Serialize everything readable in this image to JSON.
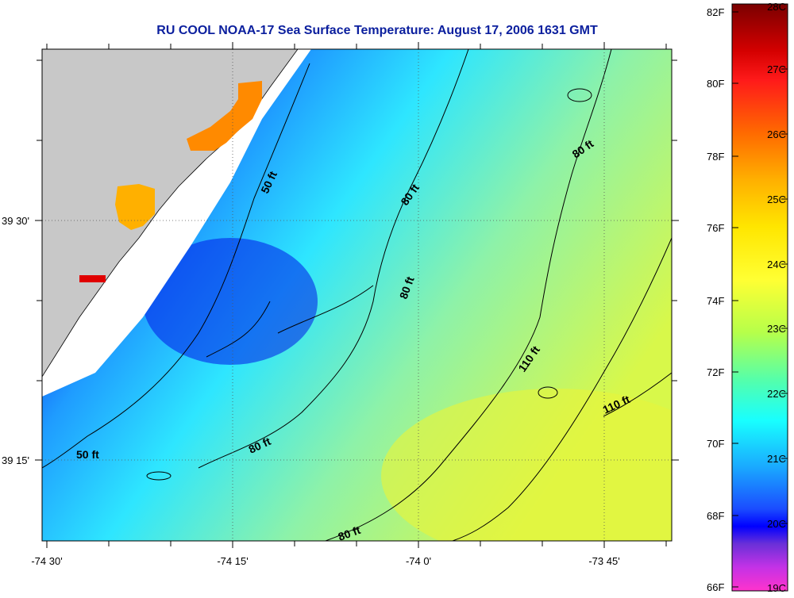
{
  "title": "RU COOL  NOAA-17  Sea Surface Temperature:  August 17, 2006 1631 GMT",
  "axes": {
    "lat_labels": [
      "39 30'",
      "39 15'"
    ],
    "lon_labels": [
      "-74 30'",
      "-74 15'",
      "-74 0'",
      "-73 45'"
    ]
  },
  "contour_labels": [
    "50 ft",
    "50 ft",
    "80 ft",
    "80 ft",
    "80 ft",
    "80 ft",
    "80 ft",
    "110 ft",
    "110 ft"
  ],
  "colorbar": {
    "fahrenheit_labels": [
      "82F",
      "80F",
      "78F",
      "76F",
      "74F",
      "72F",
      "70F",
      "68F",
      "66F"
    ],
    "celsius_labels": [
      "28C",
      "27C",
      "26C",
      "25C",
      "24C",
      "23C",
      "22C",
      "21C",
      "20C",
      "19C"
    ],
    "colors": [
      "#8b0000",
      "#ff0000",
      "#ff8c00",
      "#ffd700",
      "#ffff00",
      "#adff2f",
      "#00ffff",
      "#1e90ff",
      "#0000ff",
      "#8a2be2",
      "#ff00ff"
    ]
  },
  "colors": {
    "land": "#c8c8c8",
    "title": "#0b1f9e",
    "contour": "#000000"
  }
}
